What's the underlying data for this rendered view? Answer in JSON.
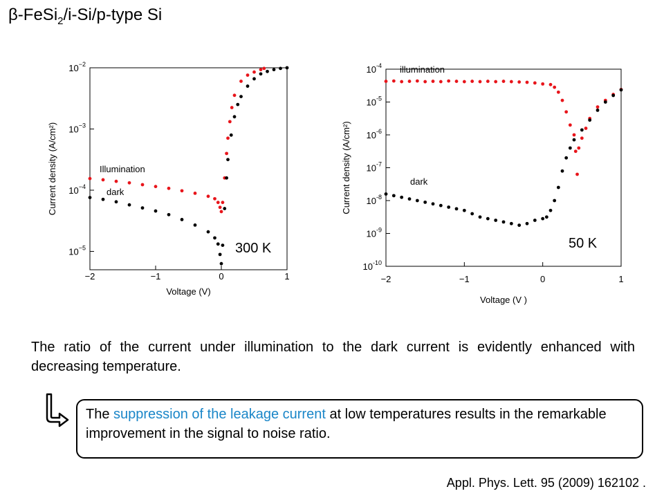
{
  "slide": {
    "title_main": "β-FeSi",
    "title_sub": "2",
    "title_rest": "/i-Si/p-type Si",
    "paragraph": "The ratio of the current under illumination to the dark current is evidently enhanced with decreasing temperature.",
    "callout_before": "The ",
    "callout_highlight": "suppression of the leakage current",
    "callout_after": " at low temperatures results in the remarkable improvement in the signal to noise ratio.",
    "citation": "Appl. Phys. Lett. 95  (2009) 162102 ."
  },
  "colors": {
    "illumination": "#e8151b",
    "dark": "#000000",
    "highlight": "#1a86c8"
  },
  "icons": {
    "callout_arrow": "down-right-arrow-icon"
  },
  "chart_data": [
    {
      "type": "scatter",
      "temperature_label": "300 K",
      "xlabel": "Voltage (V)",
      "ylabel": "Current density (A/cm²)",
      "xlim": [
        -2,
        1
      ],
      "ylim": [
        -5.3,
        -2
      ],
      "yscale": "log",
      "x_ticks": [
        -2,
        -1,
        0,
        1
      ],
      "x_tick_labels": [
        "−2",
        "−1",
        "0",
        "1"
      ],
      "y_ticks": [
        -5,
        -4,
        -3,
        -2
      ],
      "y_tick_labels": [
        {
          "base": "10",
          "exp": "−5"
        },
        {
          "base": "10",
          "exp": "−4"
        },
        {
          "base": "10",
          "exp": "−3"
        },
        {
          "base": "10",
          "exp": "−2"
        }
      ],
      "grid": false,
      "series": [
        {
          "name": "Illumination",
          "color": "#e8151b",
          "points": [
            [
              -2,
              -3.81
            ],
            [
              -1.8,
              -3.83
            ],
            [
              -1.6,
              -3.855
            ],
            [
              -1.4,
              -3.88
            ],
            [
              -1.2,
              -3.91
            ],
            [
              -1,
              -3.94
            ],
            [
              -0.8,
              -3.97
            ],
            [
              -0.6,
              -4.01
            ],
            [
              -0.4,
              -4.05
            ],
            [
              -0.2,
              -4.1
            ],
            [
              -0.1,
              -4.14
            ],
            [
              -0.05,
              -4.2
            ],
            [
              -0.02,
              -4.28
            ],
            [
              0,
              -4.35
            ],
            [
              0.02,
              -4.2
            ],
            [
              0.05,
              -3.8
            ],
            [
              0.08,
              -3.4
            ],
            [
              0.1,
              -3.15
            ],
            [
              0.13,
              -2.88
            ],
            [
              0.16,
              -2.65
            ],
            [
              0.2,
              -2.45
            ],
            [
              0.3,
              -2.22
            ],
            [
              0.4,
              -2.12
            ],
            [
              0.5,
              -2.07
            ],
            [
              0.6,
              -2.03
            ],
            [
              0.65,
              -2.01
            ]
          ]
        },
        {
          "name": "dark",
          "color": "#000000",
          "points": [
            [
              -2,
              -4.12
            ],
            [
              -1.8,
              -4.15
            ],
            [
              -1.6,
              -4.19
            ],
            [
              -1.4,
              -4.24
            ],
            [
              -1.2,
              -4.29
            ],
            [
              -1,
              -4.34
            ],
            [
              -0.8,
              -4.4
            ],
            [
              -0.6,
              -4.48
            ],
            [
              -0.4,
              -4.57
            ],
            [
              -0.2,
              -4.68
            ],
            [
              -0.1,
              -4.78
            ],
            [
              -0.05,
              -4.88
            ],
            [
              -0.02,
              -5.05
            ],
            [
              0,
              -5.2
            ],
            [
              0.02,
              -4.9
            ],
            [
              0.05,
              -4.3
            ],
            [
              0.08,
              -3.8
            ],
            [
              0.1,
              -3.5
            ],
            [
              0.15,
              -3.1
            ],
            [
              0.2,
              -2.8
            ],
            [
              0.25,
              -2.6
            ],
            [
              0.3,
              -2.47
            ],
            [
              0.4,
              -2.3
            ],
            [
              0.5,
              -2.18
            ],
            [
              0.6,
              -2.1
            ],
            [
              0.7,
              -2.06
            ],
            [
              0.8,
              -2.03
            ],
            [
              0.9,
              -2.01
            ],
            [
              1,
              -2
            ]
          ]
        }
      ]
    },
    {
      "type": "scatter",
      "temperature_label": "50 K",
      "xlabel": "Voltage (V )",
      "ylabel": "Current density (A/cm²)",
      "xlim": [
        -2,
        1
      ],
      "ylim": [
        -10,
        -4
      ],
      "yscale": "log",
      "x_ticks": [
        -2,
        -1,
        0,
        1
      ],
      "x_tick_labels": [
        "−2",
        "−1",
        "0",
        "1"
      ],
      "y_ticks": [
        -10,
        -9,
        -8,
        -7,
        -6,
        -5,
        -4
      ],
      "y_tick_labels": [
        {
          "base": "10",
          "exp": "-10"
        },
        {
          "base": "10",
          "exp": "-9"
        },
        {
          "base": "10",
          "exp": "-8"
        },
        {
          "base": "10",
          "exp": "-7"
        },
        {
          "base": "10",
          "exp": "-6"
        },
        {
          "base": "10",
          "exp": "-5"
        },
        {
          "base": "10",
          "exp": "-4"
        }
      ],
      "grid": false,
      "series": [
        {
          "name": "illumination",
          "color": "#e8151b",
          "points": [
            [
              -2,
              -4.37
            ],
            [
              -1.9,
              -4.36
            ],
            [
              -1.8,
              -4.38
            ],
            [
              -1.7,
              -4.37
            ],
            [
              -1.6,
              -4.36
            ],
            [
              -1.5,
              -4.38
            ],
            [
              -1.4,
              -4.37
            ],
            [
              -1.3,
              -4.38
            ],
            [
              -1.2,
              -4.36
            ],
            [
              -1.1,
              -4.37
            ],
            [
              -1,
              -4.38
            ],
            [
              -0.9,
              -4.37
            ],
            [
              -0.8,
              -4.38
            ],
            [
              -0.7,
              -4.37
            ],
            [
              -0.6,
              -4.38
            ],
            [
              -0.5,
              -4.37
            ],
            [
              -0.4,
              -4.38
            ],
            [
              -0.3,
              -4.39
            ],
            [
              -0.2,
              -4.4
            ],
            [
              -0.1,
              -4.42
            ],
            [
              0,
              -4.45
            ],
            [
              0.1,
              -4.47
            ],
            [
              0.15,
              -4.55
            ],
            [
              0.2,
              -4.7
            ],
            [
              0.25,
              -4.95
            ],
            [
              0.3,
              -5.3
            ],
            [
              0.35,
              -5.7
            ],
            [
              0.4,
              -6
            ],
            [
              0.42,
              -6.5
            ],
            [
              0.44,
              -7.2
            ],
            [
              0.46,
              -6.4
            ],
            [
              0.5,
              -6.1
            ],
            [
              0.55,
              -5.8
            ],
            [
              0.6,
              -5.5
            ],
            [
              0.7,
              -5.15
            ],
            [
              0.8,
              -4.95
            ],
            [
              0.9,
              -4.77
            ],
            [
              1,
              -4.62
            ]
          ]
        },
        {
          "name": "dark",
          "color": "#000000",
          "points": [
            [
              -2,
              -7.8
            ],
            [
              -1.9,
              -7.85
            ],
            [
              -1.8,
              -7.9
            ],
            [
              -1.7,
              -7.95
            ],
            [
              -1.6,
              -8
            ],
            [
              -1.5,
              -8.05
            ],
            [
              -1.4,
              -8.1
            ],
            [
              -1.3,
              -8.15
            ],
            [
              -1.2,
              -8.2
            ],
            [
              -1.1,
              -8.25
            ],
            [
              -1,
              -8.3
            ],
            [
              -0.9,
              -8.4
            ],
            [
              -0.8,
              -8.5
            ],
            [
              -0.7,
              -8.55
            ],
            [
              -0.6,
              -8.6
            ],
            [
              -0.5,
              -8.65
            ],
            [
              -0.4,
              -8.7
            ],
            [
              -0.3,
              -8.75
            ],
            [
              -0.2,
              -8.7
            ],
            [
              -0.1,
              -8.6
            ],
            [
              0,
              -8.55
            ],
            [
              0.05,
              -8.5
            ],
            [
              0.1,
              -8.3
            ],
            [
              0.15,
              -8
            ],
            [
              0.2,
              -7.6
            ],
            [
              0.25,
              -7.1
            ],
            [
              0.3,
              -6.7
            ],
            [
              0.35,
              -6.4
            ],
            [
              0.4,
              -6.15
            ],
            [
              0.5,
              -5.85
            ],
            [
              0.6,
              -5.55
            ],
            [
              0.7,
              -5.25
            ],
            [
              0.8,
              -5
            ],
            [
              0.9,
              -4.8
            ],
            [
              1,
              -4.63
            ]
          ]
        }
      ]
    }
  ]
}
